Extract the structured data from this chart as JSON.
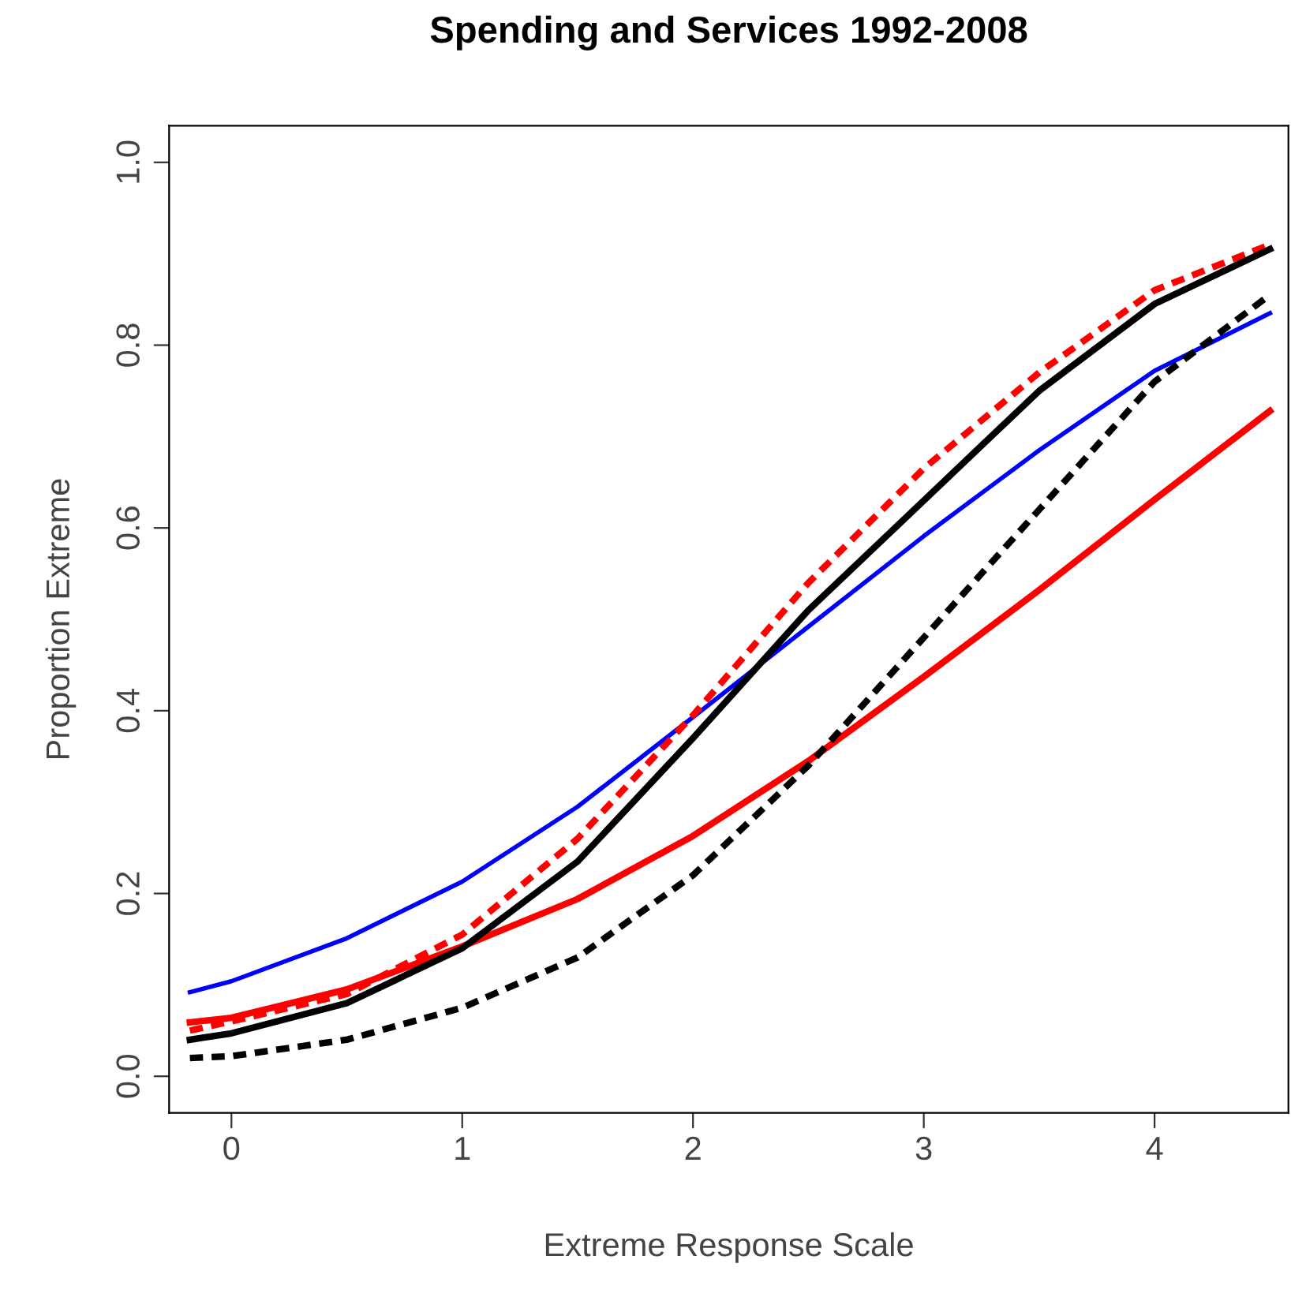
{
  "chart_data": {
    "type": "line",
    "title": "Spending and Services 1992-2008",
    "xlabel": "Extreme Response Scale",
    "ylabel": "Proportion Extreme",
    "x": [
      -0.18,
      0,
      0.5,
      1,
      1.5,
      2,
      2.5,
      3,
      3.5,
      4,
      4.5
    ],
    "series": [
      {
        "color": "#0000ff",
        "line_style": "solid",
        "values": [
          0.092,
          0.104,
          0.151,
          0.213,
          0.295,
          0.393,
          0.492,
          0.591,
          0.685,
          0.772,
          0.835
        ]
      },
      {
        "color": "#ff0000",
        "line_style": "solid",
        "values": [
          0.059,
          0.064,
          0.095,
          0.142,
          0.194,
          0.263,
          0.345,
          0.437,
          0.532,
          0.631,
          0.728
        ]
      },
      {
        "color": "#ff0000",
        "line_style": "dashed",
        "values": [
          0.05,
          0.06,
          0.09,
          0.155,
          0.26,
          0.395,
          0.54,
          0.665,
          0.77,
          0.86,
          0.91
        ]
      },
      {
        "color": "#000000",
        "line_style": "solid",
        "values": [
          0.04,
          0.047,
          0.08,
          0.14,
          0.235,
          0.37,
          0.51,
          0.63,
          0.75,
          0.845,
          0.905
        ]
      },
      {
        "color": "#000000",
        "line_style": "dashed",
        "values": [
          0.02,
          0.022,
          0.04,
          0.075,
          0.13,
          0.22,
          0.34,
          0.48,
          0.62,
          0.76,
          0.855
        ]
      }
    ],
    "xlim": [
      -0.27,
      4.58
    ],
    "ylim": [
      -0.04,
      1.04
    ],
    "xticks": [
      0,
      1,
      2,
      3,
      4
    ],
    "yticks": [
      {
        "value": 0,
        "label": "0.0"
      },
      {
        "value": 0.2,
        "label": "0.2"
      },
      {
        "value": 0.4,
        "label": "0.4"
      },
      {
        "value": 0.6,
        "label": "0.6"
      },
      {
        "value": 0.8,
        "label": "0.8"
      },
      {
        "value": 1.0,
        "label": "1.0"
      }
    ],
    "grid": false,
    "legend": false,
    "marker": "none"
  }
}
